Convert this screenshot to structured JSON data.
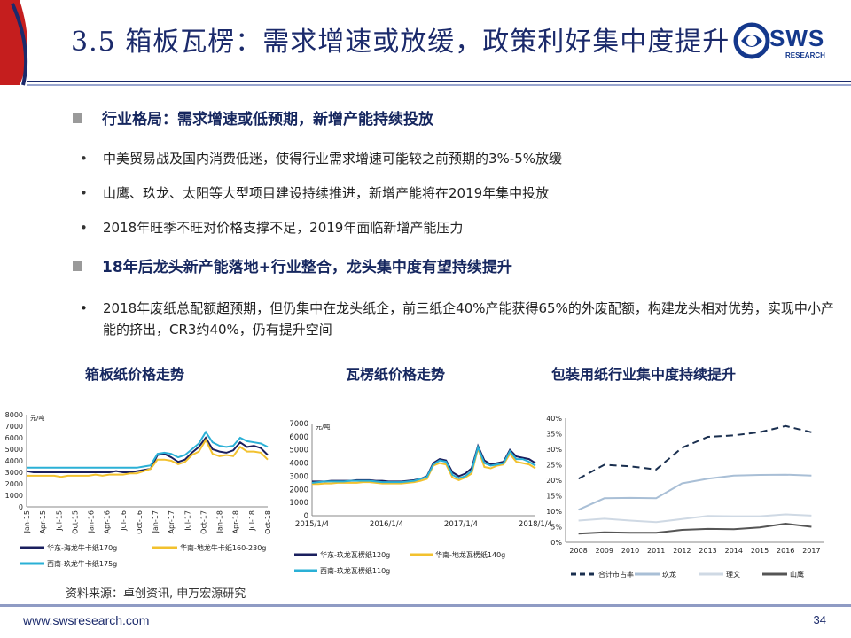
{
  "header": {
    "title": "3.5 箱板瓦楞：需求增速或放缓，政策利好集中度提升",
    "logo_text": "SWS",
    "logo_sub": "RESEARCH"
  },
  "section1": {
    "heading": "行业格局：需求增速或低预期，新增产能持续投放",
    "bullets": [
      "中美贸易战及国内消费低迷，使得行业需求增速可能较之前预期的3%-5%放缓",
      "山鹰、玖龙、太阳等大型项目建设持续推进，新增产能将在2019年集中投放",
      "2018年旺季不旺对价格支撑不足，2019年面临新增产能压力"
    ]
  },
  "section2": {
    "heading": "18年后龙头新产能落地+行业整合，龙头集中度有望持续提升",
    "bullets": [
      "2018年废纸总配额超预期，但仍集中在龙头纸企，前三纸企40%产能获得65%的外废配额，构建龙头相对优势，实现中小产能的挤出，CR3约40%，仍有提升空间"
    ]
  },
  "bullet_symbol": "•",
  "colors": {
    "title": "#1b2a6b",
    "heading": "#16275f",
    "series_navy": "#1a1f5e",
    "series_gold": "#f2c12e",
    "series_cyan": "#2ab0d6",
    "series_grey_light": "#a9bfd6",
    "series_grey_pale": "#cfd9e4",
    "series_dark": "#555555"
  },
  "chart_data": [
    {
      "type": "line",
      "title": "箱板纸价格走势",
      "unit_label": "元/吨",
      "ylim": [
        0,
        8000
      ],
      "yticks": [
        "0",
        "1000",
        "2000",
        "3000",
        "4000",
        "5000",
        "6000",
        "7000",
        "8000"
      ],
      "xticks": [
        "Jan-15",
        "Apr-15",
        "Jul-15",
        "Oct-15",
        "Jan-16",
        "Apr-16",
        "Jul-16",
        "Oct-16",
        "Jan-17",
        "Apr-17",
        "Jul-17",
        "Oct-17",
        "Jan-18",
        "Apr-18",
        "Jul-18",
        "Oct-18"
      ],
      "series": [
        {
          "name": "华东-海龙牛卡纸170g",
          "color": "#1a1f5e",
          "values": [
            3100,
            3000,
            3000,
            3000,
            3000,
            3000,
            3000,
            3000,
            3000,
            3000,
            3000,
            3000,
            3000,
            3100,
            3000,
            3000,
            3100,
            3200,
            3300,
            4500,
            4600,
            4300,
            3900,
            4100,
            4700,
            5200,
            6000,
            5000,
            4800,
            4700,
            4900,
            5600,
            5200,
            5300,
            5100,
            4500
          ]
        },
        {
          "name": "华南-地龙牛卡纸160-230g",
          "color": "#f2c12e",
          "values": [
            2700,
            2700,
            2700,
            2700,
            2700,
            2600,
            2700,
            2700,
            2700,
            2700,
            2800,
            2700,
            2800,
            2800,
            2800,
            2900,
            2900,
            3100,
            3300,
            4100,
            4100,
            4000,
            3700,
            3900,
            4500,
            4800,
            5800,
            4600,
            4400,
            4500,
            4400,
            5200,
            4800,
            4800,
            4700,
            4100
          ]
        },
        {
          "name": "西南-玖龙牛卡纸175g",
          "color": "#2ab0d6",
          "values": [
            3400,
            3400,
            3400,
            3400,
            3400,
            3400,
            3400,
            3400,
            3400,
            3400,
            3400,
            3400,
            3400,
            3400,
            3400,
            3400,
            3400,
            3500,
            3600,
            4600,
            4700,
            4600,
            4300,
            4500,
            5000,
            5500,
            6500,
            5600,
            5300,
            5200,
            5300,
            6000,
            5700,
            5600,
            5500,
            5200
          ]
        }
      ]
    },
    {
      "type": "line",
      "title": "瓦楞纸价格走势",
      "unit_label": "元/吨",
      "ylim": [
        0,
        7000
      ],
      "yticks": [
        "0",
        "1000",
        "2000",
        "3000",
        "4000",
        "5000",
        "6000",
        "7000"
      ],
      "xticks": [
        "2015/1/4",
        "2016/1/4",
        "2017/1/4",
        "2018/1/4"
      ],
      "series": [
        {
          "name": "华东-玖龙瓦楞纸120g",
          "color": "#1a1f5e",
          "values": [
            2600,
            2600,
            2600,
            2650,
            2650,
            2650,
            2650,
            2700,
            2700,
            2700,
            2650,
            2650,
            2600,
            2600,
            2600,
            2650,
            2700,
            2800,
            3000,
            4000,
            4300,
            4200,
            3300,
            3000,
            3200,
            3600,
            5300,
            4200,
            3900,
            4000,
            4100,
            5000,
            4500,
            4400,
            4300,
            4000
          ]
        },
        {
          "name": "华南-地龙瓦楞纸140g",
          "color": "#f2c12e",
          "values": [
            2400,
            2400,
            2450,
            2450,
            2500,
            2500,
            2500,
            2500,
            2550,
            2550,
            2500,
            2450,
            2450,
            2450,
            2450,
            2500,
            2550,
            2650,
            2800,
            3800,
            4000,
            3900,
            2900,
            2700,
            2900,
            3200,
            5100,
            3700,
            3600,
            3800,
            3900,
            4700,
            4100,
            4000,
            3900,
            3600
          ]
        },
        {
          "name": "西南-玖龙瓦楞纸110g",
          "color": "#2ab0d6",
          "values": [
            2500,
            2550,
            2600,
            2600,
            2600,
            2600,
            2650,
            2650,
            2650,
            2650,
            2600,
            2550,
            2550,
            2550,
            2550,
            2600,
            2650,
            2800,
            2950,
            3900,
            4200,
            4100,
            3100,
            2850,
            3000,
            3400,
            5200,
            4000,
            3800,
            3900,
            4000,
            4900,
            4300,
            4300,
            4100,
            3800
          ]
        }
      ]
    },
    {
      "type": "line",
      "title": "包装用纸行业集中度持续提升",
      "ylim": [
        0,
        40
      ],
      "yticks": [
        "0%",
        "5%",
        "10%",
        "15%",
        "20%",
        "25%",
        "30%",
        "35%",
        "40%"
      ],
      "categories": [
        "2008",
        "2009",
        "2010",
        "2011",
        "2012",
        "2013",
        "2014",
        "2015",
        "2016",
        "2017"
      ],
      "series": [
        {
          "name": "合计市占率",
          "color": "#1a2f4f",
          "dash": true,
          "values": [
            20.5,
            25,
            24.5,
            23.5,
            30.5,
            34,
            34.5,
            35.5,
            37.5,
            35.5
          ]
        },
        {
          "name": "玖龙",
          "color": "#a9bfd6",
          "values": [
            10.5,
            14.2,
            14.3,
            14.2,
            19,
            20.5,
            21.5,
            21.7,
            21.8,
            21.5
          ]
        },
        {
          "name": "理文",
          "color": "#cfd9e4",
          "values": [
            7,
            7.6,
            7,
            6.5,
            7.5,
            8.5,
            8.4,
            8.4,
            9,
            8.6
          ]
        },
        {
          "name": "山鹰",
          "color": "#555555",
          "values": [
            2.8,
            3.2,
            3.1,
            3.1,
            4,
            4.3,
            4.2,
            4.8,
            6,
            5
          ]
        }
      ]
    }
  ],
  "source_text": "资料来源：卓创资讯, 申万宏源研究",
  "footer": {
    "url": "www.swsresearch.com",
    "page": "34"
  }
}
